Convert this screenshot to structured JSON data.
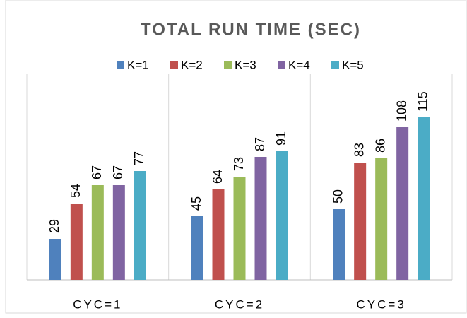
{
  "chart_data": {
    "type": "bar",
    "title": "TOTAL RUN TIME (SEC)",
    "categories": [
      "CYC=1",
      "CYC=2",
      "CYC=3"
    ],
    "series": [
      {
        "name": "K=1",
        "color": "#4f81bd",
        "values": [
          29,
          45,
          50
        ]
      },
      {
        "name": "K=2",
        "color": "#c0504d",
        "values": [
          54,
          64,
          83
        ]
      },
      {
        "name": "K=3",
        "color": "#9bbb59",
        "values": [
          67,
          73,
          86
        ]
      },
      {
        "name": "K=4",
        "color": "#8064a2",
        "values": [
          67,
          87,
          108
        ]
      },
      {
        "name": "K=5",
        "color": "#4bacc6",
        "values": [
          77,
          91,
          115
        ]
      }
    ]
  }
}
